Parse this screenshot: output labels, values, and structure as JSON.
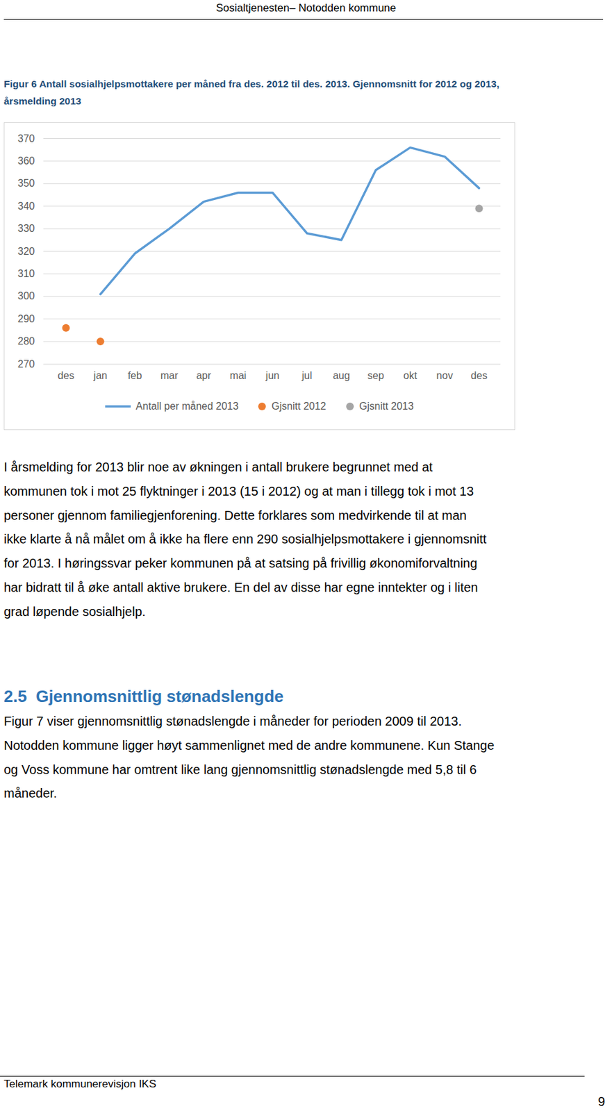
{
  "chart_data": {
    "type": "line",
    "categories": [
      "des",
      "jan",
      "feb",
      "mar",
      "apr",
      "mai",
      "jun",
      "jul",
      "aug",
      "sep",
      "okt",
      "nov",
      "des"
    ],
    "series": [
      {
        "name": "Antall per måned 2013",
        "type": "line",
        "color": "#5b9bd5",
        "line_style": "solid",
        "values": [
          null,
          301,
          319,
          330,
          342,
          346,
          346,
          328,
          325,
          356,
          366,
          362,
          348
        ]
      },
      {
        "name": "Gjsnitt 2012",
        "type": "scatter",
        "color": "#ed7d31",
        "marker": "circle",
        "values": [
          286,
          280,
          null,
          null,
          null,
          null,
          null,
          null,
          null,
          null,
          null,
          null,
          null
        ]
      },
      {
        "name": "Gjsnitt 2013",
        "type": "scatter",
        "color": "#a5a5a5",
        "marker": "circle",
        "values": [
          null,
          null,
          null,
          null,
          null,
          null,
          null,
          null,
          null,
          null,
          null,
          null,
          339
        ]
      }
    ],
    "ylim": [
      270,
      370
    ],
    "yticks": [
      270,
      280,
      290,
      300,
      310,
      320,
      330,
      340,
      350,
      360,
      370
    ],
    "grid": true,
    "legend": "bottom"
  },
  "document": {
    "header": "Sosialtjenesten– Notodden kommune",
    "caption": [
      "Figur 6 Antall sosialhjelpsmottakere per måned fra des. 2012 til des. 2013. Gjennomsnitt for 2012 og 2013,",
      "årsmelding 2013"
    ],
    "paragraph1": [
      "I årsmelding for 2013 blir noe av økningen i antall brukere begrunnet med at",
      "kommunen tok i mot 25 flyktninger i 2013 (15 i 2012) og at man i tillegg tok i mot 13",
      "personer gjennom familiegjenforening. Dette forklares som medvirkende til at man",
      "ikke klarte å nå målet om å ikke ha flere enn 290 sosialhjelpsmottakere i gjennomsnitt",
      "for 2013. I høringssvar peker kommunen på at satsing på frivillig økonomiforvaltning",
      "har bidratt til å øke antall aktive brukere. En del av disse har egne inntekter og i liten",
      "grad løpende sosialhjelp."
    ],
    "section": {
      "number": "2.5",
      "title": "Gjennomsnittlig stønadslengde"
    },
    "paragraph2": [
      "Figur 7 viser gjennomsnittlig stønadslengde i måneder for perioden 2009 til 2013.",
      "Notodden kommune ligger høyt sammenlignet med de andre kommunene. Kun Stange",
      "og Voss kommune har omtrent like lang gjennomsnittlig stønadslengde med 5,8 til 6",
      "måneder."
    ],
    "footer": "Telemark kommunerevisjon IKS",
    "page_number": "9"
  }
}
